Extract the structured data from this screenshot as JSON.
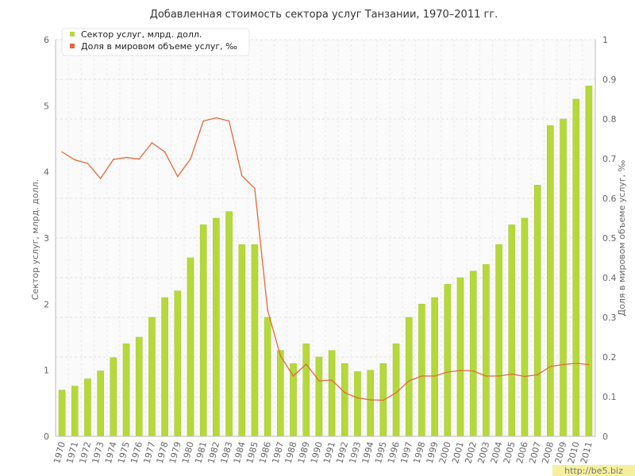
{
  "chart_data": {
    "type": "bar+line",
    "title": "Добавленная стоимость сектора услуг Танзании, 1970–2011 гг.",
    "ylabel_left": "Сектор услуг, млрд. долл.",
    "ylabel_right": "Доля в мировом объеме услуг, ‰",
    "ylim_left": [
      0,
      6
    ],
    "ylim_right": [
      0,
      1
    ],
    "yticks_left": [
      "0",
      "1",
      "2",
      "3",
      "4",
      "5",
      "6"
    ],
    "yticks_right": [
      "0",
      "0.1",
      "0.2",
      "0.3",
      "0.4",
      "0.5",
      "0.6",
      "0.7",
      "0.8",
      "0.9",
      "1"
    ],
    "grid": true,
    "legend_position": "top-left",
    "categories": [
      "1970",
      "1971",
      "1972",
      "1973",
      "1974",
      "1975",
      "1976",
      "1977",
      "1978",
      "1979",
      "1980",
      "1981",
      "1982",
      "1983",
      "1984",
      "1985",
      "1986",
      "1987",
      "1988",
      "1989",
      "1990",
      "1991",
      "1992",
      "1993",
      "1994",
      "1995",
      "1996",
      "1997",
      "1998",
      "1999",
      "2000",
      "2001",
      "2002",
      "2003",
      "2004",
      "2005",
      "2006",
      "2007",
      "2008",
      "2009",
      "2010",
      "2011"
    ],
    "series": [
      {
        "name": "Сектор услуг, млрд. долл.",
        "type": "bar",
        "axis": "left",
        "color": "#b5d93a",
        "values": [
          0.7,
          0.76,
          0.87,
          0.99,
          1.19,
          1.4,
          1.5,
          1.8,
          2.1,
          2.2,
          2.7,
          3.2,
          3.3,
          3.4,
          2.9,
          2.9,
          1.8,
          1.3,
          1.1,
          1.4,
          1.2,
          1.3,
          1.1,
          0.98,
          1.0,
          1.1,
          1.4,
          1.8,
          2.0,
          2.1,
          2.3,
          2.4,
          2.5,
          2.6,
          2.9,
          3.2,
          3.3,
          3.8,
          4.7,
          4.8,
          5.1,
          5.3
        ]
      },
      {
        "name": "Доля в мировом объеме услуг, ‰",
        "type": "line",
        "axis": "right",
        "color": "#e2693a",
        "values": [
          0.717,
          0.697,
          0.688,
          0.65,
          0.698,
          0.703,
          0.699,
          0.74,
          0.717,
          0.655,
          0.699,
          0.795,
          0.803,
          0.795,
          0.657,
          0.625,
          0.318,
          0.203,
          0.152,
          0.182,
          0.14,
          0.142,
          0.11,
          0.097,
          0.092,
          0.091,
          0.11,
          0.14,
          0.152,
          0.152,
          0.162,
          0.166,
          0.165,
          0.152,
          0.152,
          0.157,
          0.151,
          0.155,
          0.176,
          0.181,
          0.184,
          0.181
        ]
      }
    ]
  },
  "watermark": "http://be5.biz"
}
